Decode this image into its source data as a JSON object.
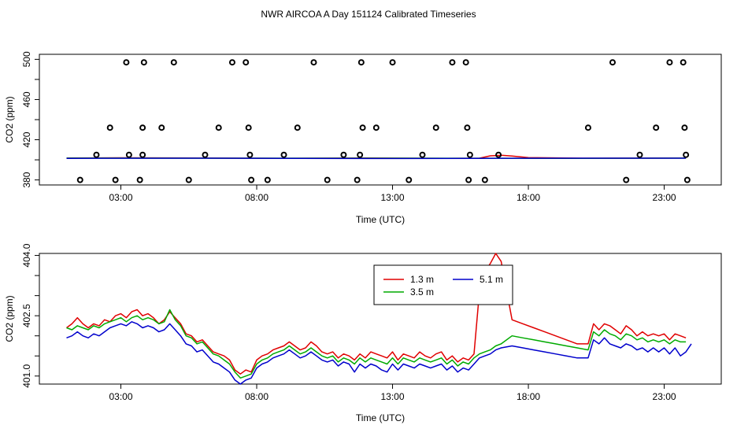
{
  "title": "NWR AIRCOA A  Day 151124  Calibrated Timeseries",
  "chart_data": [
    {
      "type": "scatter",
      "title": "",
      "xlabel": "Time (UTC)",
      "ylabel": "CO2 (ppm)",
      "xlim": [
        0,
        25.1
      ],
      "ylim": [
        375,
        505
      ],
      "x_ticks": [
        3,
        8,
        13,
        18,
        23
      ],
      "x_tick_labels": [
        "03:00",
        "08:00",
        "13:00",
        "18:00",
        "23:00"
      ],
      "y_ticks": [
        380,
        420,
        460,
        500
      ],
      "y_tick_labels": [
        "380",
        "420",
        "460",
        "500"
      ],
      "y_minor_ticks": [
        400,
        440,
        480
      ],
      "grid": false,
      "points": {
        "x": [
          1.5,
          2.1,
          2.6,
          3.2,
          2.8,
          3.3,
          3.7,
          3.8,
          3.8,
          3.85,
          4.5,
          4.95,
          5.5,
          6.1,
          6.6,
          7.1,
          7.6,
          7.7,
          7.75,
          7.8,
          8.4,
          9.0,
          9.5,
          10.1,
          10.6,
          11.2,
          11.7,
          11.8,
          11.9,
          11.85,
          12.4,
          13.0,
          13.6,
          14.1,
          14.6,
          15.2,
          15.7,
          15.75,
          15.85,
          15.8,
          16.4,
          16.9,
          20.2,
          21.1,
          21.6,
          22.1,
          22.7,
          23.2,
          23.7,
          23.75,
          23.8,
          23.85
        ],
        "y": [
          380,
          405,
          432,
          497,
          380,
          405,
          380,
          432,
          405,
          497,
          432,
          497,
          380,
          405,
          432,
          497,
          497,
          432,
          405,
          380,
          380,
          405,
          432,
          497,
          380,
          405,
          380,
          405,
          432,
          497,
          432,
          497,
          380,
          405,
          432,
          497,
          497,
          432,
          405,
          380,
          380,
          405,
          432,
          497,
          380,
          405,
          432,
          497,
          497,
          432,
          405,
          380
        ]
      },
      "series": [
        {
          "name": "1.3 m",
          "color": "#e00000",
          "x": [
            1,
            3,
            6,
            9,
            12,
            15,
            16.2,
            16.6,
            17,
            17.4,
            18,
            20,
            23.8
          ],
          "y": [
            401.8,
            402,
            401.8,
            401.5,
            401.8,
            401.5,
            401.6,
            404,
            404.5,
            403.8,
            402.2,
            401.6,
            401.8
          ]
        },
        {
          "name": "3.5 m",
          "color": "#00aa00",
          "x": [
            1,
            12,
            20,
            23.8
          ],
          "y": [
            401.7,
            401.6,
            401.5,
            401.7
          ]
        },
        {
          "name": "5.1 m",
          "color": "#0000cc",
          "x": [
            1,
            6,
            12,
            16,
            20,
            23.8
          ],
          "y": [
            401.5,
            401.6,
            401.3,
            401.5,
            401.6,
            401.6
          ]
        }
      ]
    },
    {
      "type": "line",
      "title": "",
      "xlabel": "Time (UTC)",
      "ylabel": "CO2 (ppm)",
      "xlim": [
        0,
        25.1
      ],
      "ylim": [
        400.8,
        404.05
      ],
      "x_ticks": [
        3,
        8,
        13,
        18,
        23
      ],
      "x_tick_labels": [
        "03:00",
        "08:00",
        "13:00",
        "18:00",
        "23:00"
      ],
      "y_ticks": [
        401.0,
        402.5,
        404.0
      ],
      "y_tick_labels": [
        "401.0",
        "402.5",
        "404.0"
      ],
      "y_minor_ticks": [
        401.5,
        402.0,
        403.0,
        403.5
      ],
      "grid": false,
      "legend": {
        "placement": "top-center",
        "entries": [
          "1.3 m",
          "5.1 m",
          "3.5 m"
        ]
      },
      "series": [
        {
          "name": "1.3 m",
          "color": "#e00000",
          "x": [
            1.0,
            1.2,
            1.4,
            1.6,
            1.8,
            2.0,
            2.2,
            2.4,
            2.6,
            2.8,
            3.0,
            3.2,
            3.4,
            3.6,
            3.8,
            4.0,
            4.2,
            4.4,
            4.6,
            4.8,
            5.0,
            5.2,
            5.4,
            5.6,
            5.8,
            6.0,
            6.2,
            6.4,
            6.6,
            6.8,
            7.0,
            7.2,
            7.4,
            7.6,
            7.8,
            8.0,
            8.2,
            8.4,
            8.6,
            8.8,
            9.0,
            9.2,
            9.4,
            9.6,
            9.8,
            10.0,
            10.2,
            10.4,
            10.6,
            10.8,
            11.0,
            11.2,
            11.4,
            11.6,
            11.8,
            12.0,
            12.2,
            12.4,
            12.6,
            12.8,
            13.0,
            13.2,
            13.4,
            13.6,
            13.8,
            14.0,
            14.2,
            14.4,
            14.6,
            14.8,
            15.0,
            15.2,
            15.4,
            15.6,
            15.8,
            16.0,
            16.2,
            16.4,
            16.6,
            16.8,
            17.0,
            17.4,
            17.8,
            18.2,
            18.6,
            19.0,
            19.4,
            19.8,
            20.2,
            20.4,
            20.6,
            20.8,
            21.0,
            21.2,
            21.4,
            21.6,
            21.8,
            22.0,
            22.2,
            22.4,
            22.6,
            22.8,
            23.0,
            23.2,
            23.4,
            23.6,
            23.8
          ],
          "y": [
            402.2,
            402.3,
            402.45,
            402.3,
            402.2,
            402.3,
            402.25,
            402.4,
            402.35,
            402.5,
            402.55,
            402.45,
            402.6,
            402.65,
            402.5,
            402.55,
            402.45,
            402.3,
            402.4,
            402.6,
            402.45,
            402.3,
            402.05,
            402.0,
            401.85,
            401.9,
            401.75,
            401.6,
            401.55,
            401.5,
            401.4,
            401.15,
            401.05,
            401.15,
            401.1,
            401.4,
            401.5,
            401.55,
            401.65,
            401.7,
            401.75,
            401.85,
            401.75,
            401.65,
            401.7,
            401.85,
            401.75,
            401.6,
            401.55,
            401.6,
            401.45,
            401.55,
            401.5,
            401.4,
            401.55,
            401.45,
            401.6,
            401.55,
            401.5,
            401.45,
            401.6,
            401.4,
            401.55,
            401.5,
            401.45,
            401.6,
            401.5,
            401.45,
            401.55,
            401.6,
            401.4,
            401.5,
            401.35,
            401.45,
            401.4,
            401.55,
            403.1,
            403.6,
            403.8,
            404.05,
            403.85,
            402.4,
            402.3,
            402.2,
            402.1,
            402.0,
            401.9,
            401.8,
            401.8,
            402.3,
            402.15,
            402.3,
            402.25,
            402.15,
            402.05,
            402.25,
            402.15,
            402.0,
            402.1,
            402.0,
            402.05,
            402.0,
            402.05,
            401.9,
            402.05,
            402.0,
            401.95
          ]
        },
        {
          "name": "3.5 m",
          "color": "#00aa00",
          "x": [
            1.0,
            1.2,
            1.4,
            1.6,
            1.8,
            2.0,
            2.2,
            2.4,
            2.6,
            2.8,
            3.0,
            3.2,
            3.4,
            3.6,
            3.8,
            4.0,
            4.2,
            4.4,
            4.6,
            4.8,
            5.0,
            5.2,
            5.4,
            5.6,
            5.8,
            6.0,
            6.2,
            6.4,
            6.6,
            6.8,
            7.0,
            7.2,
            7.4,
            7.6,
            7.8,
            8.0,
            8.2,
            8.4,
            8.6,
            8.8,
            9.0,
            9.2,
            9.4,
            9.6,
            9.8,
            10.0,
            10.2,
            10.4,
            10.6,
            10.8,
            11.0,
            11.2,
            11.4,
            11.6,
            11.8,
            12.0,
            12.2,
            12.4,
            12.6,
            12.8,
            13.0,
            13.2,
            13.4,
            13.6,
            13.8,
            14.0,
            14.2,
            14.4,
            14.6,
            14.8,
            15.0,
            15.2,
            15.4,
            15.6,
            15.8,
            16.0,
            16.2,
            16.4,
            16.6,
            16.8,
            17.0,
            17.4,
            17.8,
            18.2,
            18.6,
            19.0,
            19.4,
            19.8,
            20.2,
            20.4,
            20.6,
            20.8,
            21.0,
            21.2,
            21.4,
            21.6,
            21.8,
            22.0,
            22.2,
            22.4,
            22.6,
            22.8,
            23.0,
            23.2,
            23.4,
            23.6,
            23.8
          ],
          "y": [
            402.2,
            402.15,
            402.25,
            402.2,
            402.15,
            402.25,
            402.2,
            402.3,
            402.35,
            402.4,
            402.45,
            402.35,
            402.45,
            402.5,
            402.4,
            402.45,
            402.4,
            402.3,
            402.35,
            402.65,
            402.4,
            402.25,
            402.0,
            401.95,
            401.8,
            401.85,
            401.7,
            401.55,
            401.5,
            401.4,
            401.3,
            401.1,
            400.95,
            401.0,
            401.05,
            401.3,
            401.4,
            401.45,
            401.55,
            401.6,
            401.65,
            401.75,
            401.65,
            401.55,
            401.6,
            401.7,
            401.6,
            401.5,
            401.45,
            401.5,
            401.35,
            401.45,
            401.4,
            401.3,
            401.45,
            401.35,
            401.45,
            401.4,
            401.35,
            401.3,
            401.45,
            401.3,
            401.45,
            401.4,
            401.35,
            401.45,
            401.4,
            401.35,
            401.4,
            401.45,
            401.3,
            401.4,
            401.25,
            401.35,
            401.3,
            401.45,
            401.55,
            401.6,
            401.65,
            401.75,
            401.8,
            402.0,
            401.95,
            401.9,
            401.85,
            401.8,
            401.75,
            401.7,
            401.65,
            402.1,
            402.0,
            402.15,
            402.05,
            402.0,
            401.9,
            402.05,
            402.0,
            401.9,
            401.95,
            401.85,
            401.9,
            401.85,
            401.9,
            401.8,
            401.9,
            401.85,
            401.85
          ]
        },
        {
          "name": "5.1 m",
          "color": "#0000cc",
          "x": [
            1.0,
            1.2,
            1.4,
            1.6,
            1.8,
            2.0,
            2.2,
            2.4,
            2.6,
            2.8,
            3.0,
            3.2,
            3.4,
            3.6,
            3.8,
            4.0,
            4.2,
            4.4,
            4.6,
            4.8,
            5.0,
            5.2,
            5.4,
            5.6,
            5.8,
            6.0,
            6.2,
            6.4,
            6.6,
            6.8,
            7.0,
            7.2,
            7.4,
            7.6,
            7.8,
            8.0,
            8.2,
            8.4,
            8.6,
            8.8,
            9.0,
            9.2,
            9.4,
            9.6,
            9.8,
            10.0,
            10.2,
            10.4,
            10.6,
            10.8,
            11.0,
            11.2,
            11.4,
            11.6,
            11.8,
            12.0,
            12.2,
            12.4,
            12.6,
            12.8,
            13.0,
            13.2,
            13.4,
            13.6,
            13.8,
            14.0,
            14.2,
            14.4,
            14.6,
            14.8,
            15.0,
            15.2,
            15.4,
            15.6,
            15.8,
            16.0,
            16.2,
            16.4,
            16.6,
            16.8,
            17.0,
            17.4,
            17.8,
            18.2,
            18.6,
            19.0,
            19.4,
            19.8,
            20.2,
            20.4,
            20.6,
            20.8,
            21.0,
            21.2,
            21.4,
            21.6,
            21.8,
            22.0,
            22.2,
            22.4,
            22.6,
            22.8,
            23.0,
            23.2,
            23.4,
            23.6,
            23.8,
            24.0
          ],
          "y": [
            401.95,
            402.0,
            402.1,
            402.0,
            401.95,
            402.05,
            402.0,
            402.1,
            402.2,
            402.25,
            402.3,
            402.25,
            402.35,
            402.3,
            402.2,
            402.25,
            402.2,
            402.1,
            402.15,
            402.3,
            402.15,
            402.0,
            401.8,
            401.75,
            401.6,
            401.65,
            401.5,
            401.35,
            401.3,
            401.2,
            401.1,
            400.9,
            400.8,
            400.9,
            400.95,
            401.2,
            401.3,
            401.35,
            401.45,
            401.5,
            401.55,
            401.65,
            401.55,
            401.45,
            401.5,
            401.6,
            401.5,
            401.4,
            401.35,
            401.4,
            401.25,
            401.35,
            401.3,
            401.1,
            401.3,
            401.2,
            401.3,
            401.25,
            401.15,
            401.1,
            401.3,
            401.15,
            401.3,
            401.25,
            401.2,
            401.3,
            401.25,
            401.2,
            401.25,
            401.3,
            401.15,
            401.25,
            401.1,
            401.2,
            401.15,
            401.3,
            401.45,
            401.5,
            401.55,
            401.65,
            401.7,
            401.75,
            401.7,
            401.65,
            401.6,
            401.55,
            401.5,
            401.45,
            401.45,
            401.9,
            401.8,
            401.95,
            401.8,
            401.75,
            401.7,
            401.8,
            401.75,
            401.65,
            401.7,
            401.6,
            401.7,
            401.6,
            401.7,
            401.55,
            401.7,
            401.5,
            401.6,
            401.8
          ]
        }
      ]
    }
  ]
}
